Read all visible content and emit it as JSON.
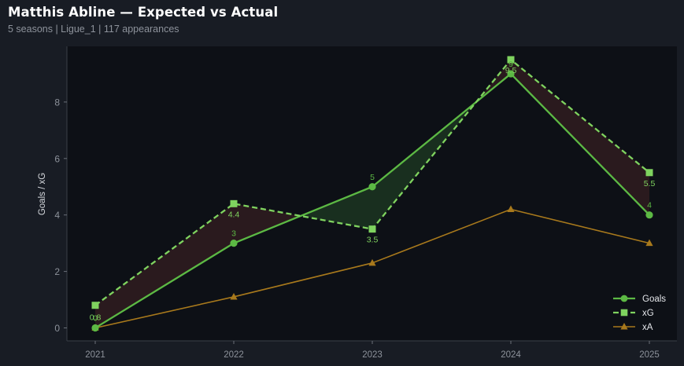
{
  "header": {
    "title": "Matthis Abline — Expected vs Actual",
    "subtitle": "5 seasons | Ligue_1 | 117 appearances"
  },
  "colors": {
    "background": "#181c24",
    "plot_background": "#0d1016",
    "goals": "#5cb944",
    "xg": "#7fd35f",
    "xa": "#a8791c",
    "overperform_fill": "#1a3120",
    "underperform_fill": "#2c1b1f"
  },
  "chart_data": {
    "type": "line",
    "title": "",
    "xlabel": "",
    "ylabel": "Goals / xG",
    "categories": [
      "2021",
      "2022",
      "2023",
      "2024",
      "2025"
    ],
    "yticks": [
      0,
      2,
      4,
      6,
      8
    ],
    "ylim": [
      -0.4,
      9.8
    ],
    "grid": false,
    "legend_position": "bottom-right",
    "series": [
      {
        "name": "Goals",
        "values": [
          0,
          3,
          5,
          9,
          4
        ],
        "labels": [
          "0",
          "3",
          "5",
          "9",
          "4"
        ],
        "style": "solid",
        "marker": "circle"
      },
      {
        "name": "xG",
        "values": [
          0.8,
          4.4,
          3.5,
          9.5,
          5.5
        ],
        "labels": [
          "0.8",
          "4.4",
          "3.5",
          "9.5",
          "5.5"
        ],
        "style": "dashed",
        "marker": "square"
      },
      {
        "name": "xA",
        "values": [
          0,
          1.1,
          2.3,
          4.2,
          3.0
        ],
        "style": "solid",
        "marker": "triangle"
      }
    ]
  }
}
